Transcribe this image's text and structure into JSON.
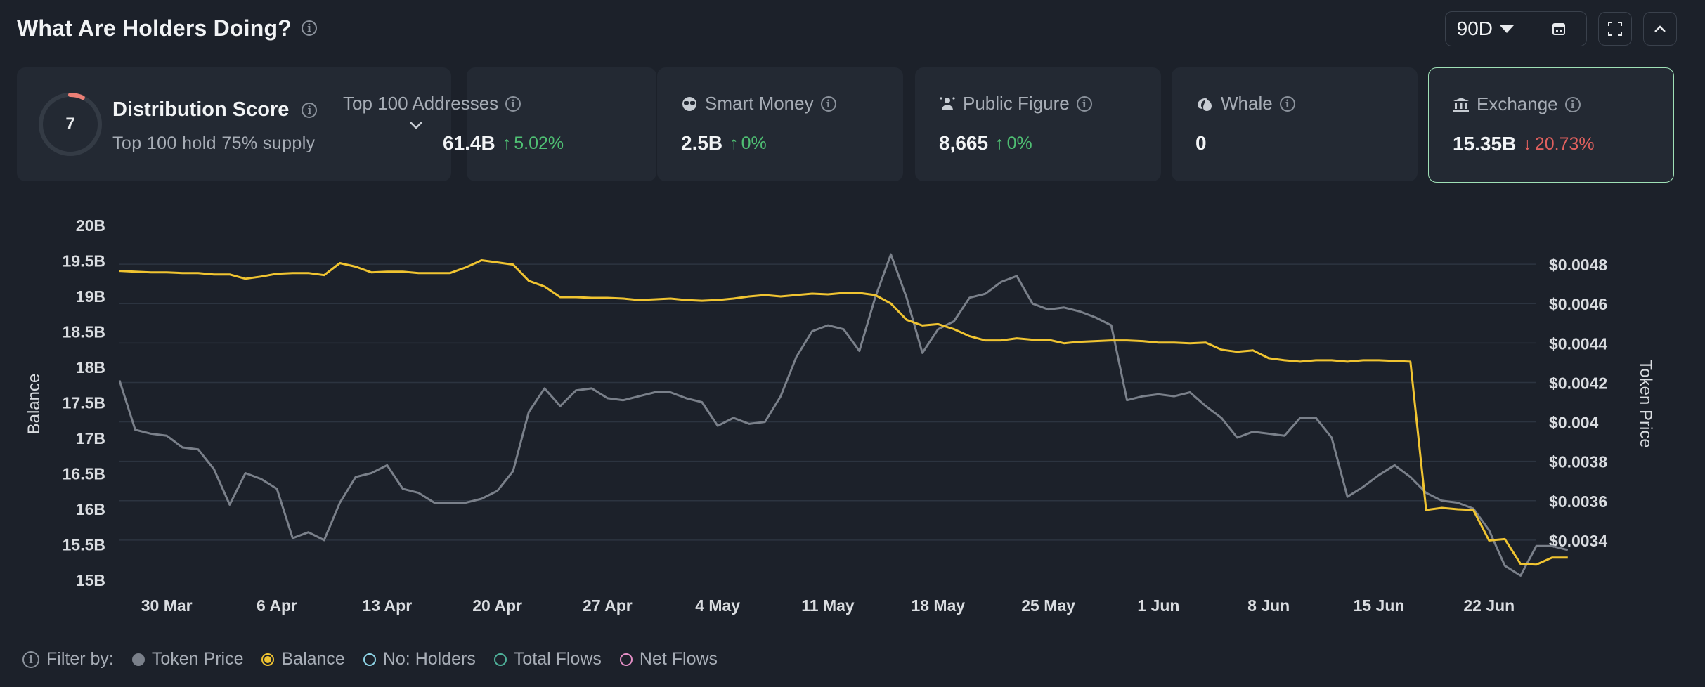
{
  "header": {
    "title": "What Are Holders Doing?"
  },
  "controls": {
    "period": "90D"
  },
  "distribution": {
    "score": "7",
    "title": "Distribution Score",
    "subtitle": "Top 100 hold 75% supply",
    "score_fraction": 0.07
  },
  "cards": [
    {
      "label": "Top 100 Addresses",
      "value": "61.4B",
      "change": "5.02%",
      "direction": "up",
      "icon": "users-icon"
    },
    {
      "label": "Smart Money",
      "value": "2.5B",
      "change": "0%",
      "direction": "up",
      "icon": "sunglasses-icon"
    },
    {
      "label": "Public Figure",
      "value": "8,665",
      "change": "0%",
      "direction": "up",
      "icon": "person-icon"
    },
    {
      "label": "Whale",
      "value": "0",
      "change": "",
      "direction": "",
      "icon": "whale-icon"
    },
    {
      "label": "Exchange",
      "value": "15.35B",
      "change": "20.73%",
      "direction": "down",
      "icon": "bank-icon",
      "active": true
    }
  ],
  "legend": {
    "filter_label": "Filter by:",
    "items": [
      {
        "label": "Token Price",
        "state": "on",
        "color": "#7a808a"
      },
      {
        "label": "Balance",
        "state": "on",
        "color": "#f0c431"
      },
      {
        "label": "No: Holders",
        "state": "off",
        "color": "#8fd6e8"
      },
      {
        "label": "Total Flows",
        "state": "off",
        "color": "#4fb39b"
      },
      {
        "label": "Net Flows",
        "state": "off",
        "color": "#e58fc6"
      }
    ]
  },
  "chart_data": {
    "type": "line",
    "ylabel": "Balance",
    "y2label": "Token Price",
    "ylim": [
      15,
      20
    ],
    "y2lim": [
      0.0032,
      0.005
    ],
    "yticks": [
      "20B",
      "19.5B",
      "19B",
      "18.5B",
      "18B",
      "17.5B",
      "17B",
      "16.5B",
      "16B",
      "15.5B",
      "15B"
    ],
    "y2ticks": [
      "$0.0048",
      "$0.0046",
      "$0.0044",
      "$0.0042",
      "$0.004",
      "$0.0038",
      "$0.0036",
      "$0.0034"
    ],
    "xticks": [
      "30 Mar",
      "6 Apr",
      "13 Apr",
      "20 Apr",
      "27 Apr",
      "4 May",
      "11 May",
      "18 May",
      "25 May",
      "1 Jun",
      "8 Jun",
      "15 Jun",
      "22 Jun"
    ],
    "x_start": "27 Mar",
    "x_days": 91,
    "series": [
      {
        "name": "Balance",
        "color": "#f0c431",
        "axis": "left",
        "values": [
          19.35,
          19.34,
          19.33,
          19.33,
          19.32,
          19.32,
          19.3,
          19.3,
          19.24,
          19.27,
          19.31,
          19.32,
          19.32,
          19.29,
          19.46,
          19.41,
          19.33,
          19.34,
          19.34,
          19.32,
          19.32,
          19.32,
          19.4,
          19.5,
          19.47,
          19.44,
          19.21,
          19.13,
          18.98,
          18.98,
          18.97,
          18.97,
          18.96,
          18.94,
          18.95,
          18.96,
          18.94,
          18.93,
          18.94,
          18.96,
          18.99,
          19.01,
          18.99,
          19.01,
          19.03,
          19.02,
          19.04,
          19.04,
          19.01,
          18.89,
          18.66,
          18.58,
          18.6,
          18.53,
          18.43,
          18.37,
          18.37,
          18.4,
          18.38,
          18.38,
          18.33,
          18.35,
          18.36,
          18.37,
          18.37,
          18.36,
          18.34,
          18.34,
          18.33,
          18.34,
          18.24,
          18.21,
          18.23,
          18.12,
          18.09,
          18.07,
          18.09,
          18.09,
          18.07,
          18.09,
          18.09,
          18.08,
          18.07,
          15.98,
          16.01,
          15.99,
          15.98,
          15.55,
          15.57,
          15.22,
          15.21,
          15.31,
          15.31
        ]
      },
      {
        "name": "Token Price",
        "color": "#7a808a",
        "axis": "right",
        "values": [
          0.00421,
          0.00396,
          0.00394,
          0.00393,
          0.00387,
          0.00386,
          0.00376,
          0.00358,
          0.00374,
          0.00371,
          0.00366,
          0.00341,
          0.00344,
          0.0034,
          0.00359,
          0.00372,
          0.00374,
          0.00378,
          0.00366,
          0.00364,
          0.00359,
          0.00359,
          0.00359,
          0.00361,
          0.00365,
          0.00375,
          0.00405,
          0.00417,
          0.00408,
          0.00416,
          0.00417,
          0.00412,
          0.00411,
          0.00413,
          0.00415,
          0.00415,
          0.00412,
          0.0041,
          0.00398,
          0.00402,
          0.00399,
          0.004,
          0.00413,
          0.00433,
          0.00446,
          0.00449,
          0.00447,
          0.00436,
          0.00463,
          0.00485,
          0.00463,
          0.00435,
          0.00447,
          0.00451,
          0.00463,
          0.00465,
          0.00471,
          0.00474,
          0.0046,
          0.00457,
          0.00458,
          0.00456,
          0.00453,
          0.00449,
          0.00411,
          0.00413,
          0.00414,
          0.00413,
          0.00415,
          0.00408,
          0.00402,
          0.00392,
          0.00395,
          0.00394,
          0.00393,
          0.00402,
          0.00402,
          0.00392,
          0.00362,
          0.00367,
          0.00373,
          0.00378,
          0.00372,
          0.00364,
          0.0036,
          0.00359,
          0.00356,
          0.00345,
          0.00327,
          0.00322,
          0.00337,
          0.00337,
          0.00335
        ]
      }
    ]
  }
}
